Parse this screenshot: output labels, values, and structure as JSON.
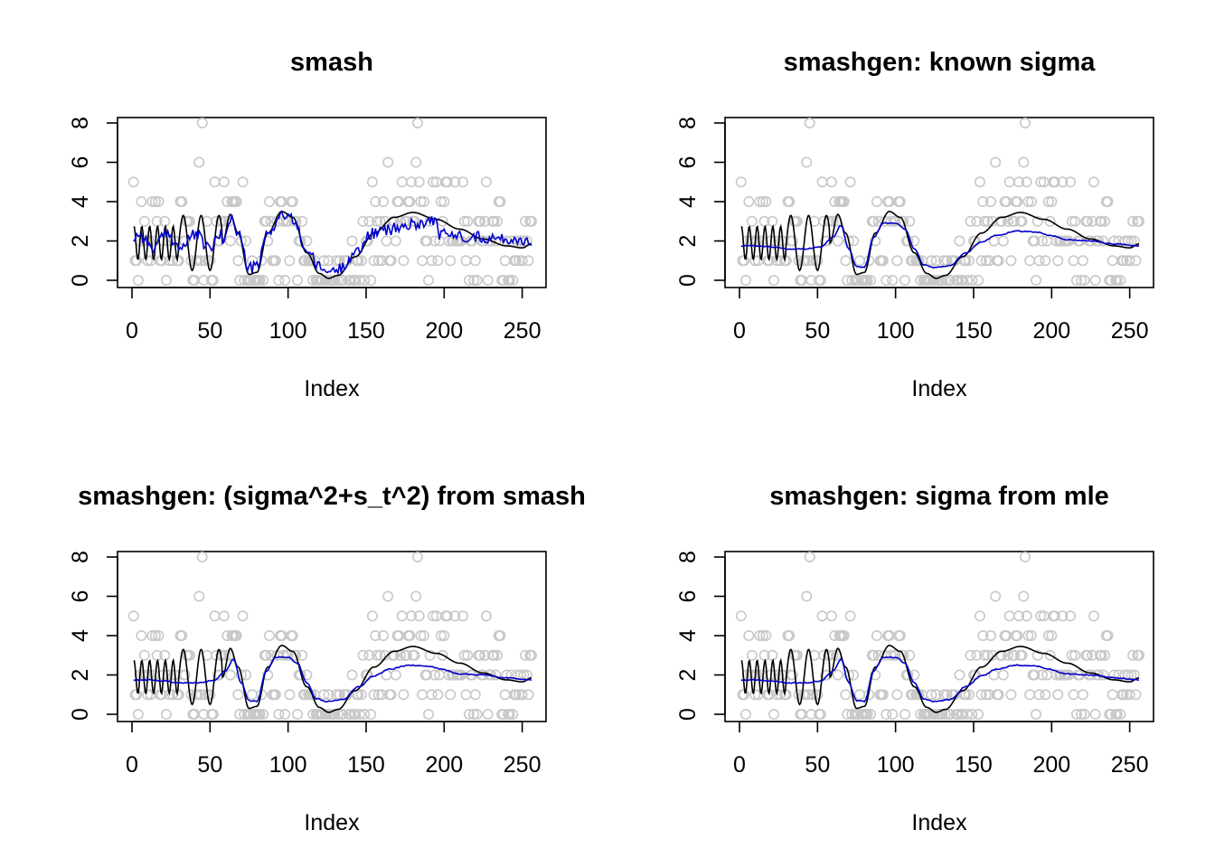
{
  "colors": {
    "truth": "#000000",
    "estimate": "#0000CC",
    "observations": "#C8C8C8",
    "frame": "#000000"
  },
  "chart_data": [
    {
      "type": "scatter",
      "title": "smash",
      "xlabel": "Index",
      "ylabel": "",
      "xlim": [
        0,
        256
      ],
      "ylim": [
        0,
        8
      ],
      "xticks": [
        0,
        50,
        100,
        150,
        200,
        250
      ],
      "yticks": [
        0,
        2,
        4,
        6,
        8
      ],
      "estimate_kind": "noisy"
    },
    {
      "type": "scatter",
      "title": "smashgen: known sigma",
      "xlabel": "Index",
      "ylabel": "",
      "xlim": [
        0,
        256
      ],
      "ylim": [
        0,
        8
      ],
      "xticks": [
        0,
        50,
        100,
        150,
        200,
        250
      ],
      "yticks": [
        0,
        2,
        4,
        6,
        8
      ],
      "estimate_kind": "smooth"
    },
    {
      "type": "scatter",
      "title": "smashgen: (sigma^2+s_t^2) from smash",
      "xlabel": "Index",
      "ylabel": "",
      "xlim": [
        0,
        256
      ],
      "ylim": [
        0,
        8
      ],
      "xticks": [
        0,
        50,
        100,
        150,
        200,
        250
      ],
      "yticks": [
        0,
        2,
        4,
        6,
        8
      ],
      "estimate_kind": "smooth"
    },
    {
      "type": "scatter",
      "title": "smashgen: sigma from mle",
      "xlabel": "Index",
      "ylabel": "",
      "xlim": [
        0,
        256
      ],
      "ylim": [
        0,
        8
      ],
      "xticks": [
        0,
        50,
        100,
        150,
        200,
        250
      ],
      "yticks": [
        0,
        2,
        4,
        6,
        8
      ],
      "estimate_kind": "smooth"
    }
  ]
}
